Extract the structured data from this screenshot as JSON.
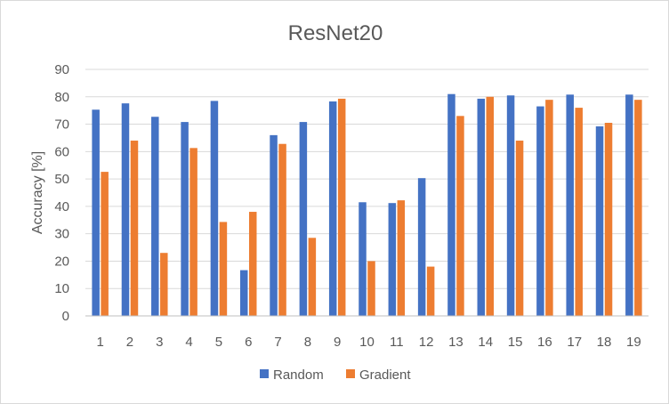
{
  "chart_data": {
    "type": "bar",
    "title": "ResNet20",
    "xlabel": "",
    "ylabel": "Accuracy [%]",
    "ylim": [
      0,
      90
    ],
    "yticks": [
      0,
      10,
      20,
      30,
      40,
      50,
      60,
      70,
      80,
      90
    ],
    "grid": true,
    "legend_position": "bottom",
    "categories": [
      "1",
      "2",
      "3",
      "4",
      "5",
      "6",
      "7",
      "8",
      "9",
      "10",
      "11",
      "12",
      "13",
      "14",
      "15",
      "16",
      "17",
      "18",
      "19"
    ],
    "series": [
      {
        "name": "Random",
        "color": "#4472c4",
        "values": [
          75.3,
          77.6,
          72.7,
          70.8,
          78.5,
          16.7,
          66.0,
          70.8,
          78.3,
          41.5,
          41.2,
          50.3,
          81.0,
          79.3,
          80.5,
          76.5,
          80.8,
          69.2,
          80.8
        ]
      },
      {
        "name": "Gradient",
        "color": "#ed7d31",
        "values": [
          52.6,
          64.0,
          23.0,
          61.3,
          34.3,
          38.0,
          62.8,
          28.5,
          79.3,
          20.0,
          42.2,
          18.0,
          73.0,
          80.0,
          64.0,
          78.9,
          76.0,
          70.5,
          78.9
        ]
      }
    ]
  }
}
